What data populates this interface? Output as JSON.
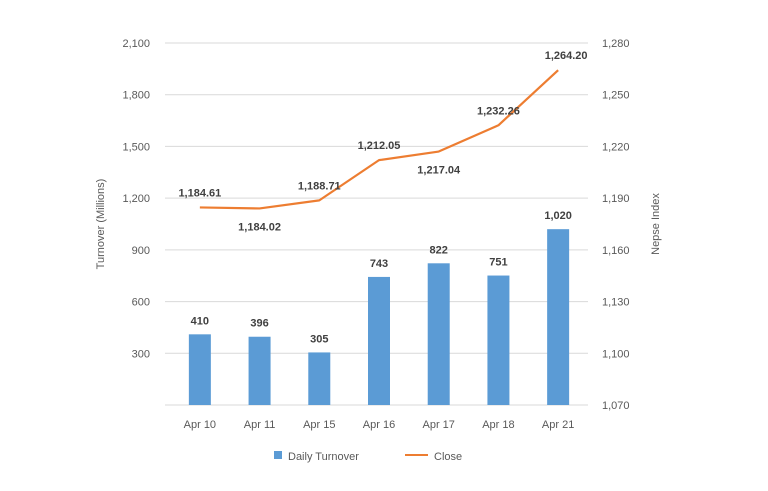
{
  "chart_data": {
    "type": "bar+line",
    "categories": [
      "Apr 10",
      "Apr 11",
      "Apr 15",
      "Apr 16",
      "Apr 17",
      "Apr 18",
      "Apr 21"
    ],
    "series": [
      {
        "name": "Daily Turnover",
        "type": "bar",
        "axis": "left",
        "values": [
          410,
          396,
          305,
          743,
          822,
          751,
          1020
        ],
        "labels": [
          "410",
          "396",
          "305",
          "743",
          "822",
          "751",
          "1,020"
        ],
        "color": "#5B9BD5"
      },
      {
        "name": "Close",
        "type": "line",
        "axis": "right",
        "values": [
          1184.61,
          1184.02,
          1188.71,
          1212.05,
          1217.04,
          1232.26,
          1264.2
        ],
        "labels": [
          "1,184.61",
          "1,184.02",
          "1,188.71",
          "1,212.05",
          "1,217.04",
          "1,232.26",
          "1,264.20"
        ],
        "color": "#ED7D31"
      }
    ],
    "ylabel": "Turnover (Millions)",
    "y2label": "Nepse Index",
    "ylim": [
      0,
      2100
    ],
    "yticks": [
      300,
      600,
      900,
      1200,
      1500,
      1800,
      2100
    ],
    "ytick_labels": [
      "300",
      "600",
      "900",
      "1,200",
      "1,500",
      "1,800",
      "2,100"
    ],
    "y2lim": [
      1070,
      1280
    ],
    "y2ticks": [
      1070,
      1100,
      1130,
      1160,
      1190,
      1220,
      1250,
      1280
    ],
    "y2tick_labels": [
      "1,070",
      "1,100",
      "1,130",
      "1,160",
      "1,190",
      "1,220",
      "1,250",
      "1,280"
    ],
    "grid": true,
    "legend": "bottom"
  }
}
